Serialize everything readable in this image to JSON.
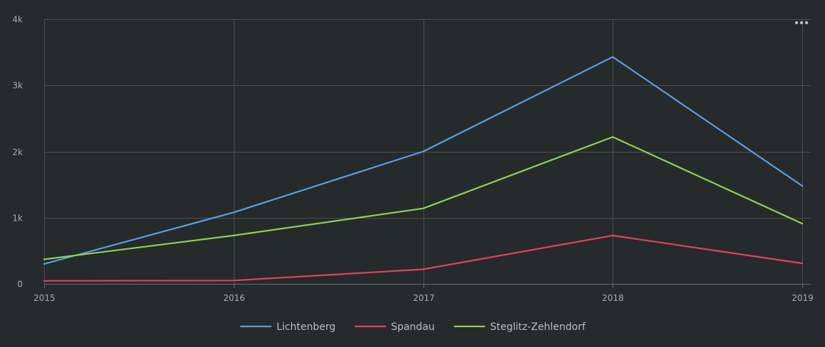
{
  "chart_data": {
    "type": "line",
    "x": [
      "2015",
      "2016",
      "2017",
      "2018",
      "2019"
    ],
    "series": [
      {
        "name": "Lichtenberg",
        "color": "#5b9ee6",
        "values": [
          300,
          1080,
          2000,
          3430,
          1480
        ]
      },
      {
        "name": "Spandau",
        "color": "#e8405f",
        "values": [
          45,
          50,
          220,
          730,
          310
        ]
      },
      {
        "name": "Steglitz-Zehlendorf",
        "color": "#8fd14f",
        "values": [
          370,
          730,
          1140,
          2220,
          910
        ]
      }
    ],
    "ylim": [
      0,
      4000
    ],
    "yticks": [
      0,
      1000,
      2000,
      3000,
      4000
    ],
    "ytick_labels": [
      "0",
      "1k",
      "2k",
      "3k",
      "4k"
    ],
    "grid": true,
    "legend_position": "bottom-center",
    "menu_icon": "ellipsis-icon"
  }
}
